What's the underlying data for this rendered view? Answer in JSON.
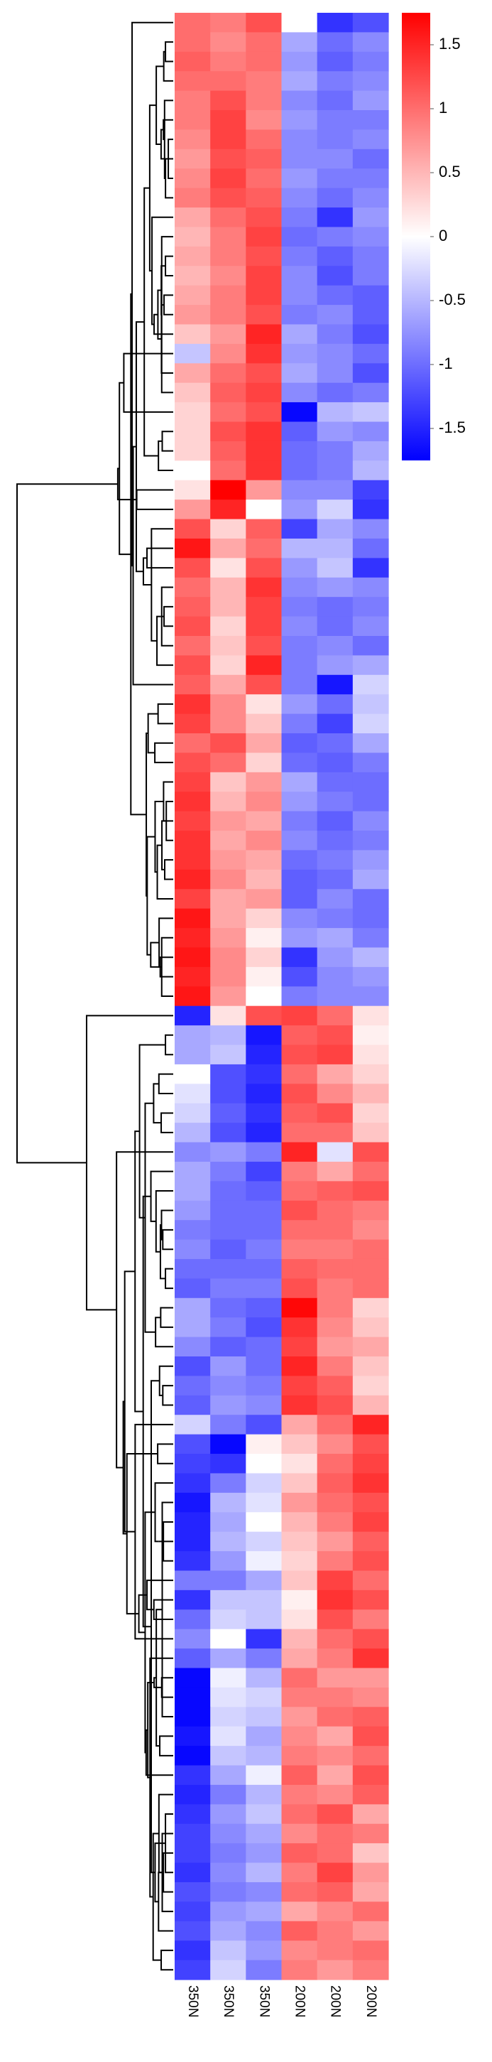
{
  "chart_data": {
    "type": "heatmap",
    "columns": [
      "350N",
      "350N",
      "350N",
      "200N",
      "200N",
      "200N"
    ],
    "colorbar": {
      "min": -1.75,
      "max": 1.75,
      "ticks": [
        1.5,
        1,
        0.5,
        0,
        -0.5,
        -1,
        -1.5
      ],
      "tick_labels": [
        "1.5",
        "1",
        "0.5",
        "0",
        "-0.5",
        "-1",
        "-1.5"
      ],
      "colors": {
        "low": "#0000ff",
        "mid": "#ffffff",
        "high": "#ff0000"
      }
    },
    "row_dendrogram": true,
    "values": [
      [
        1.0,
        0.9,
        1.2,
        0.0,
        -1.4,
        -1.2
      ],
      [
        1.0,
        0.8,
        1.0,
        -0.6,
        -1.0,
        -0.8
      ],
      [
        1.1,
        0.9,
        1.0,
        -0.7,
        -1.1,
        -0.9
      ],
      [
        1.0,
        1.0,
        0.9,
        -0.6,
        -0.9,
        -0.8
      ],
      [
        0.9,
        1.2,
        0.9,
        -0.8,
        -1.0,
        -0.7
      ],
      [
        0.9,
        1.3,
        0.8,
        -0.7,
        -0.9,
        -0.9
      ],
      [
        0.8,
        1.3,
        1.0,
        -0.8,
        -0.9,
        -0.8
      ],
      [
        0.7,
        1.2,
        1.1,
        -0.8,
        -0.8,
        -1.0
      ],
      [
        0.8,
        1.3,
        1.0,
        -0.7,
        -0.9,
        -0.9
      ],
      [
        0.9,
        1.2,
        1.1,
        -0.8,
        -1.0,
        -0.8
      ],
      [
        0.6,
        1.0,
        1.2,
        -0.9,
        -1.4,
        -0.7
      ],
      [
        0.5,
        0.9,
        1.3,
        -1.0,
        -0.9,
        -0.8
      ],
      [
        0.6,
        0.9,
        1.2,
        -0.9,
        -1.1,
        -0.9
      ],
      [
        0.5,
        0.8,
        1.3,
        -0.8,
        -1.2,
        -0.9
      ],
      [
        0.6,
        0.9,
        1.3,
        -0.8,
        -1.0,
        -1.1
      ],
      [
        0.7,
        0.9,
        1.2,
        -0.9,
        -0.8,
        -1.1
      ],
      [
        0.4,
        0.7,
        1.5,
        -0.6,
        -0.9,
        -1.2
      ],
      [
        -0.4,
        0.8,
        1.4,
        -0.7,
        -0.8,
        -1.0
      ],
      [
        0.6,
        1.0,
        1.2,
        -0.6,
        -0.8,
        -1.2
      ],
      [
        0.4,
        1.1,
        1.3,
        -0.8,
        -1.0,
        -0.9
      ],
      [
        0.3,
        1.0,
        1.2,
        -1.7,
        -0.5,
        -0.4
      ],
      [
        0.3,
        1.2,
        1.4,
        -1.1,
        -0.7,
        -0.8
      ],
      [
        0.3,
        1.1,
        1.4,
        -1.0,
        -0.9,
        -0.6
      ],
      [
        0.0,
        1.0,
        1.4,
        -1.0,
        -0.9,
        -0.5
      ],
      [
        0.2,
        1.8,
        0.7,
        -0.8,
        -0.8,
        -1.3
      ],
      [
        0.7,
        1.5,
        0.0,
        -0.7,
        -0.3,
        -1.4
      ],
      [
        1.2,
        0.3,
        1.1,
        -1.3,
        -0.6,
        -0.8
      ],
      [
        1.6,
        0.6,
        1.0,
        -0.5,
        -0.5,
        -1.0
      ],
      [
        1.2,
        0.2,
        1.2,
        -0.7,
        -0.4,
        -1.4
      ],
      [
        1.0,
        0.5,
        1.4,
        -0.8,
        -0.7,
        -0.8
      ],
      [
        1.1,
        0.5,
        1.3,
        -0.9,
        -1.0,
        -0.9
      ],
      [
        1.2,
        0.3,
        1.3,
        -0.8,
        -1.0,
        -0.8
      ],
      [
        1.0,
        0.4,
        1.2,
        -0.9,
        -0.8,
        -1.0
      ],
      [
        1.2,
        0.3,
        1.5,
        -0.9,
        -0.7,
        -0.6
      ],
      [
        1.1,
        0.6,
        1.2,
        -0.9,
        -1.6,
        -0.3
      ],
      [
        1.4,
        0.8,
        0.2,
        -0.7,
        -1.0,
        -0.4
      ],
      [
        1.3,
        0.8,
        0.4,
        -0.9,
        -1.3,
        -0.3
      ],
      [
        1.0,
        1.2,
        0.6,
        -1.1,
        -1.0,
        -0.6
      ],
      [
        1.2,
        1.0,
        0.3,
        -1.0,
        -1.1,
        -0.9
      ],
      [
        1.3,
        0.4,
        0.7,
        -0.6,
        -1.0,
        -1.0
      ],
      [
        1.4,
        0.5,
        0.8,
        -0.7,
        -0.9,
        -1.0
      ],
      [
        1.3,
        0.7,
        0.6,
        -0.9,
        -1.1,
        -0.8
      ],
      [
        1.4,
        0.6,
        0.8,
        -0.8,
        -1.0,
        -0.9
      ],
      [
        1.4,
        0.7,
        0.6,
        -1.0,
        -0.9,
        -0.7
      ],
      [
        1.5,
        0.8,
        0.5,
        -1.1,
        -1.0,
        -0.6
      ],
      [
        1.3,
        0.6,
        0.7,
        -1.1,
        -0.8,
        -1.0
      ],
      [
        1.6,
        0.6,
        0.3,
        -0.8,
        -0.9,
        -1.0
      ],
      [
        1.5,
        0.7,
        0.1,
        -0.7,
        -0.6,
        -0.9
      ],
      [
        1.6,
        0.8,
        0.3,
        -1.4,
        -0.7,
        -0.5
      ],
      [
        1.5,
        0.8,
        0.1,
        -1.2,
        -0.8,
        -0.7
      ],
      [
        1.6,
        0.7,
        0.0,
        -0.9,
        -0.8,
        -0.8
      ],
      [
        -1.5,
        0.2,
        1.2,
        1.3,
        1.0,
        0.2
      ],
      [
        -0.6,
        -0.5,
        -1.6,
        1.1,
        1.2,
        0.1
      ],
      [
        -0.6,
        -0.4,
        -1.5,
        1.2,
        1.3,
        0.2
      ],
      [
        0.0,
        -1.2,
        -1.4,
        1.0,
        0.6,
        0.3
      ],
      [
        -0.2,
        -1.2,
        -1.5,
        1.2,
        0.8,
        0.5
      ],
      [
        -0.3,
        -1.1,
        -1.4,
        1.1,
        1.2,
        0.3
      ],
      [
        -0.5,
        -1.2,
        -1.5,
        1.0,
        1.0,
        0.4
      ],
      [
        -0.8,
        -0.7,
        -0.9,
        1.5,
        -0.2,
        1.2
      ],
      [
        -0.6,
        -0.9,
        -1.3,
        0.9,
        0.6,
        1.0
      ],
      [
        -0.6,
        -1.0,
        -1.1,
        1.0,
        1.1,
        1.2
      ],
      [
        -0.7,
        -1.0,
        -1.0,
        1.2,
        1.0,
        0.9
      ],
      [
        -0.9,
        -1.0,
        -1.0,
        1.0,
        1.0,
        0.8
      ],
      [
        -0.8,
        -1.1,
        -0.9,
        0.9,
        0.9,
        1.0
      ],
      [
        -1.0,
        -1.0,
        -1.0,
        1.1,
        1.0,
        1.0
      ],
      [
        -1.1,
        -0.9,
        -0.9,
        1.2,
        0.9,
        1.0
      ],
      [
        -0.6,
        -1.0,
        -1.1,
        1.7,
        0.9,
        0.3
      ],
      [
        -0.6,
        -0.9,
        -1.2,
        1.4,
        0.8,
        0.4
      ],
      [
        -0.8,
        -1.1,
        -1.0,
        1.3,
        0.7,
        0.6
      ],
      [
        -1.2,
        -0.7,
        -1.0,
        1.5,
        0.9,
        0.4
      ],
      [
        -1.0,
        -0.8,
        -0.9,
        1.3,
        1.1,
        0.3
      ],
      [
        -1.1,
        -0.7,
        -0.8,
        1.4,
        1.2,
        0.5
      ],
      [
        -0.3,
        -0.9,
        -1.2,
        0.6,
        1.0,
        1.5
      ],
      [
        -1.2,
        -1.7,
        0.1,
        0.4,
        0.8,
        1.2
      ],
      [
        -1.3,
        -1.4,
        0.0,
        0.2,
        1.0,
        1.3
      ],
      [
        -1.4,
        -0.9,
        -0.3,
        0.4,
        1.1,
        1.4
      ],
      [
        -1.6,
        -0.5,
        -0.2,
        0.7,
        1.0,
        1.2
      ],
      [
        -1.5,
        -0.6,
        0.0,
        0.5,
        0.9,
        1.3
      ],
      [
        -1.5,
        -0.5,
        -0.3,
        0.4,
        0.7,
        1.1
      ],
      [
        -1.4,
        -0.7,
        -0.1,
        0.3,
        0.9,
        1.2
      ],
      [
        -0.9,
        -0.9,
        -0.6,
        0.4,
        1.3,
        1.0
      ],
      [
        -1.4,
        -0.4,
        -0.4,
        0.1,
        1.4,
        1.2
      ],
      [
        -1.0,
        -0.3,
        -0.4,
        0.2,
        1.2,
        0.9
      ],
      [
        -0.8,
        0.0,
        -1.4,
        0.5,
        1.0,
        1.2
      ],
      [
        -1.1,
        -0.6,
        -0.9,
        0.6,
        0.9,
        1.4
      ],
      [
        -1.7,
        -0.1,
        -0.5,
        1.0,
        0.7,
        0.7
      ],
      [
        -1.7,
        -0.2,
        -0.3,
        0.9,
        0.9,
        0.8
      ],
      [
        -1.7,
        -0.3,
        -0.4,
        0.7,
        1.0,
        1.1
      ],
      [
        -1.6,
        -0.2,
        -0.6,
        0.8,
        0.6,
        1.2
      ],
      [
        -1.7,
        -0.4,
        -0.5,
        0.9,
        0.8,
        1.0
      ],
      [
        -1.4,
        -0.6,
        -0.1,
        1.1,
        0.6,
        1.2
      ],
      [
        -1.5,
        -0.9,
        -0.5,
        0.9,
        0.8,
        1.1
      ],
      [
        -1.4,
        -0.7,
        -0.4,
        1.0,
        1.2,
        0.6
      ],
      [
        -1.3,
        -0.8,
        -0.6,
        0.8,
        1.0,
        0.9
      ],
      [
        -1.3,
        -0.9,
        -0.7,
        1.1,
        1.0,
        0.4
      ],
      [
        -1.4,
        -0.8,
        -0.5,
        0.9,
        1.3,
        0.7
      ],
      [
        -1.2,
        -0.9,
        -0.8,
        1.0,
        1.1,
        0.6
      ],
      [
        -1.3,
        -0.7,
        -0.6,
        0.6,
        0.8,
        1.0
      ],
      [
        -1.2,
        -0.6,
        -0.8,
        1.1,
        0.9,
        0.7
      ],
      [
        -1.4,
        -0.4,
        -0.7,
        0.8,
        0.9,
        1.0
      ],
      [
        -1.3,
        -0.3,
        -0.9,
        0.9,
        0.7,
        0.9
      ]
    ]
  }
}
